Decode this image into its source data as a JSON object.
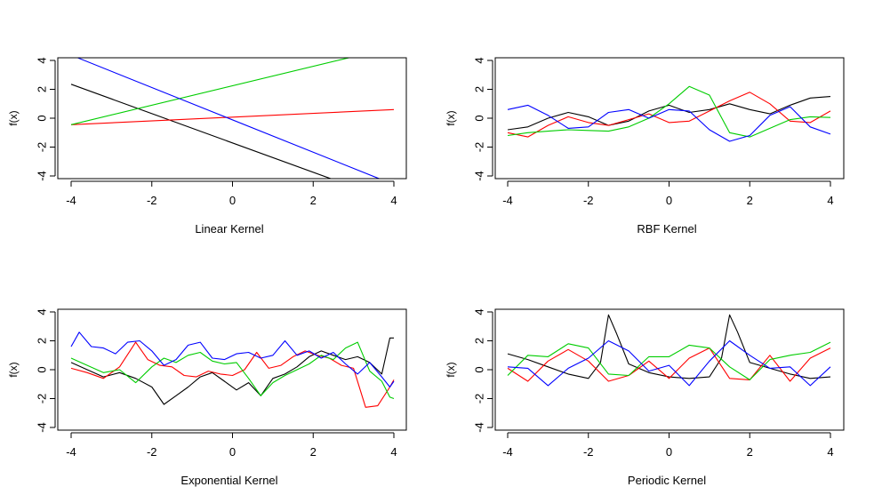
{
  "chart_data": [
    {
      "type": "line",
      "xlabel": "Linear Kernel",
      "ylabel": "f(x)",
      "xlim": [
        -4,
        4
      ],
      "ylim": [
        -4,
        4
      ],
      "xticks": [
        "-4",
        "-2",
        "0",
        "2",
        "4"
      ],
      "yticks": [
        "-4",
        "-2",
        "0",
        "2",
        "4"
      ],
      "series": [
        {
          "color": "#000000",
          "x": [
            -4,
            2.45
          ],
          "y": [
            2.35,
            -4.2
          ]
        },
        {
          "color": "#ff0000",
          "x": [
            -4,
            4
          ],
          "y": [
            -0.45,
            0.6
          ]
        },
        {
          "color": "#00cd00",
          "x": [
            -4,
            2.9
          ],
          "y": [
            -0.45,
            4.2
          ]
        },
        {
          "color": "#0000ff",
          "x": [
            -3.85,
            3.65
          ],
          "y": [
            4.2,
            -4.2
          ]
        }
      ]
    },
    {
      "type": "line",
      "xlabel": "RBF Kernel",
      "ylabel": "f(x)",
      "xlim": [
        -4,
        4
      ],
      "ylim": [
        -4,
        4
      ],
      "xticks": [
        "-4",
        "-2",
        "0",
        "2",
        "4"
      ],
      "yticks": [
        "-4",
        "-2",
        "0",
        "2",
        "4"
      ],
      "series": [
        {
          "color": "#000000",
          "x": [
            -4,
            -3.5,
            -3,
            -2.5,
            -2,
            -1.5,
            -1,
            -0.5,
            0,
            0.5,
            1,
            1.5,
            2,
            2.5,
            3,
            3.5,
            4
          ],
          "y": [
            -0.8,
            -0.6,
            0.0,
            0.4,
            0.1,
            -0.5,
            -0.2,
            0.5,
            0.9,
            0.4,
            0.6,
            1.0,
            0.6,
            0.3,
            0.9,
            1.4,
            1.5
          ]
        },
        {
          "color": "#ff0000",
          "x": [
            -4,
            -3.5,
            -3,
            -2.5,
            -2,
            -1.5,
            -1,
            -0.5,
            0,
            0.5,
            1,
            1.5,
            2,
            2.5,
            3,
            3.5,
            4
          ],
          "y": [
            -1.0,
            -1.3,
            -0.5,
            0.1,
            -0.3,
            -0.5,
            -0.1,
            0.3,
            -0.3,
            -0.2,
            0.5,
            1.2,
            1.8,
            1.0,
            -0.2,
            -0.3,
            0.5
          ]
        },
        {
          "color": "#00cd00",
          "x": [
            -4,
            -3.5,
            -3,
            -2.5,
            -2,
            -1.5,
            -1,
            -0.5,
            0,
            0.5,
            1,
            1.5,
            2,
            2.5,
            3,
            3.5,
            4
          ],
          "y": [
            -1.2,
            -1.0,
            -0.9,
            -0.8,
            -0.85,
            -0.9,
            -0.6,
            0.0,
            1.0,
            2.2,
            1.6,
            -1.0,
            -1.3,
            -0.7,
            -0.1,
            0.1,
            0.05
          ]
        },
        {
          "color": "#0000ff",
          "x": [
            -4,
            -3.5,
            -3,
            -2.5,
            -2,
            -1.5,
            -1,
            -0.5,
            0,
            0.5,
            1,
            1.5,
            2,
            2.5,
            3,
            3.5,
            4
          ],
          "y": [
            0.6,
            0.9,
            0.2,
            -0.7,
            -0.6,
            0.4,
            0.6,
            0.0,
            0.6,
            0.5,
            -0.8,
            -1.6,
            -1.2,
            0.2,
            0.8,
            -0.6,
            -1.1
          ]
        }
      ]
    },
    {
      "type": "line",
      "xlabel": "Exponential Kernel",
      "ylabel": "f(x)",
      "xlim": [
        -4,
        4
      ],
      "ylim": [
        -4,
        4
      ],
      "xticks": [
        "-4",
        "-2",
        "0",
        "2",
        "4"
      ],
      "yticks": [
        "-4",
        "-2",
        "0",
        "2",
        "4"
      ],
      "series": [
        {
          "color": "#000000",
          "x": [
            -4,
            -3.6,
            -3.2,
            -2.8,
            -2.4,
            -2.0,
            -1.7,
            -1.4,
            -1.1,
            -0.8,
            -0.5,
            -0.2,
            0.1,
            0.4,
            0.7,
            1.0,
            1.3,
            1.6,
            1.9,
            2.2,
            2.5,
            2.8,
            3.1,
            3.4,
            3.7,
            3.9,
            4.0
          ],
          "y": [
            0.5,
            0.0,
            -0.5,
            -0.2,
            -0.6,
            -1.2,
            -2.4,
            -1.8,
            -1.2,
            -0.5,
            -0.2,
            -0.8,
            -1.4,
            -0.9,
            -1.8,
            -0.6,
            -0.3,
            0.2,
            0.9,
            1.3,
            1.0,
            0.7,
            0.9,
            0.5,
            -0.3,
            2.2,
            2.2
          ]
        },
        {
          "color": "#ff0000",
          "x": [
            -4,
            -3.6,
            -3.2,
            -2.8,
            -2.4,
            -2.1,
            -1.8,
            -1.5,
            -1.2,
            -0.9,
            -0.6,
            -0.3,
            0.0,
            0.3,
            0.6,
            0.9,
            1.2,
            1.5,
            1.8,
            2.1,
            2.4,
            2.7,
            3.0,
            3.3,
            3.6,
            3.9,
            4.0
          ],
          "y": [
            0.1,
            -0.2,
            -0.6,
            0.2,
            1.9,
            0.7,
            0.3,
            0.2,
            -0.4,
            -0.5,
            -0.1,
            -0.3,
            -0.4,
            0.0,
            1.2,
            0.1,
            0.3,
            0.9,
            1.3,
            1.0,
            0.8,
            0.3,
            0.1,
            -2.6,
            -2.5,
            -1.2,
            -0.7
          ]
        },
        {
          "color": "#00cd00",
          "x": [
            -4,
            -3.6,
            -3.2,
            -2.8,
            -2.4,
            -2.0,
            -1.7,
            -1.4,
            -1.1,
            -0.8,
            -0.5,
            -0.2,
            0.1,
            0.4,
            0.7,
            1.0,
            1.3,
            1.6,
            1.9,
            2.2,
            2.5,
            2.8,
            3.1,
            3.4,
            3.7,
            3.9,
            4.0
          ],
          "y": [
            0.8,
            0.3,
            -0.2,
            0.0,
            -0.9,
            0.2,
            0.8,
            0.5,
            1.0,
            1.2,
            0.6,
            0.4,
            0.5,
            -0.6,
            -1.8,
            -0.9,
            -0.4,
            0.0,
            0.4,
            1.0,
            0.7,
            1.5,
            1.9,
            -0.1,
            -0.8,
            -1.9,
            -2.0
          ]
        },
        {
          "color": "#0000ff",
          "x": [
            -4,
            -3.8,
            -3.5,
            -3.2,
            -2.9,
            -2.6,
            -2.3,
            -2.0,
            -1.7,
            -1.4,
            -1.1,
            -0.8,
            -0.5,
            -0.2,
            0.1,
            0.4,
            0.7,
            1.0,
            1.3,
            1.6,
            1.9,
            2.2,
            2.5,
            2.8,
            3.1,
            3.4,
            3.7,
            3.9,
            4.0
          ],
          "y": [
            1.6,
            2.6,
            1.6,
            1.5,
            1.1,
            1.9,
            2.0,
            1.3,
            0.3,
            0.7,
            1.7,
            1.9,
            0.8,
            0.7,
            1.1,
            1.2,
            0.8,
            1.0,
            2.0,
            1.0,
            1.3,
            0.8,
            1.2,
            0.4,
            -0.3,
            0.5,
            -0.5,
            -1.2,
            -0.8
          ]
        }
      ]
    },
    {
      "type": "line",
      "xlabel": "Periodic Kernel",
      "ylabel": "f(x)",
      "xlim": [
        -4,
        4
      ],
      "ylim": [
        -4,
        4
      ],
      "xticks": [
        "-4",
        "-2",
        "0",
        "2",
        "4"
      ],
      "yticks": [
        "-4",
        "-2",
        "0",
        "2",
        "4"
      ],
      "series": [
        {
          "color": "#000000",
          "x": [
            -4,
            -3.5,
            -3,
            -2.5,
            -2,
            -1.7,
            -1.5,
            -1.3,
            -1,
            -0.5,
            0,
            0.5,
            1,
            1.3,
            1.5,
            1.7,
            2,
            2.5,
            3,
            3.5,
            4
          ],
          "y": [
            1.1,
            0.7,
            0.2,
            -0.3,
            -0.6,
            0.5,
            3.8,
            2.5,
            0.4,
            -0.2,
            -0.5,
            -0.6,
            -0.5,
            0.8,
            3.8,
            2.6,
            0.5,
            0.1,
            -0.3,
            -0.6,
            -0.5
          ]
        },
        {
          "color": "#ff0000",
          "x": [
            -4,
            -3.5,
            -3,
            -2.5,
            -2,
            -1.5,
            -1,
            -0.5,
            0,
            0.5,
            1,
            1.5,
            2,
            2.5,
            3,
            3.5,
            4
          ],
          "y": [
            0.1,
            -0.8,
            0.6,
            1.4,
            0.6,
            -0.8,
            -0.4,
            0.6,
            -0.6,
            0.8,
            1.5,
            -0.6,
            -0.7,
            1.0,
            -0.8,
            0.8,
            1.5
          ]
        },
        {
          "color": "#00cd00",
          "x": [
            -4,
            -3.5,
            -3,
            -2.5,
            -2,
            -1.5,
            -1,
            -0.5,
            0,
            0.5,
            1,
            1.5,
            2,
            2.5,
            3,
            3.5,
            4
          ],
          "y": [
            -0.4,
            1.0,
            0.9,
            1.8,
            1.5,
            -0.3,
            -0.4,
            0.9,
            0.9,
            1.7,
            1.5,
            0.2,
            -0.7,
            0.7,
            1.0,
            1.2,
            1.9
          ]
        },
        {
          "color": "#0000ff",
          "x": [
            -4,
            -3.5,
            -3,
            -2.5,
            -2,
            -1.5,
            -1,
            -0.5,
            0,
            0.5,
            1,
            1.5,
            2,
            2.5,
            3,
            3.5,
            4
          ],
          "y": [
            0.2,
            0.1,
            -1.1,
            0.1,
            0.8,
            2.0,
            1.3,
            -0.1,
            0.3,
            -1.1,
            0.6,
            2.0,
            1.0,
            0.1,
            0.2,
            -1.1,
            0.2
          ]
        }
      ]
    }
  ]
}
